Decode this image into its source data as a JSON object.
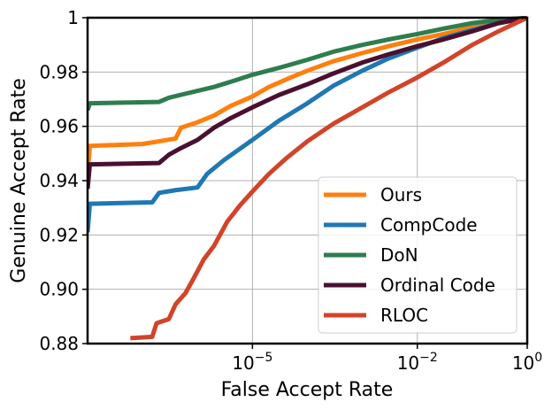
{
  "chart_data": {
    "type": "line",
    "title": "",
    "xlabel": "False Accept Rate",
    "ylabel": "Genuine Accept Rate",
    "xscale": "log",
    "xlim": [
      1e-08,
      1
    ],
    "ylim": [
      0.88,
      1.0
    ],
    "grid": true,
    "legend_position": "lower-right",
    "x_ticks": [
      {
        "value": 1e-05,
        "base": "10",
        "exp": "−5"
      },
      {
        "value": 0.01,
        "base": "10",
        "exp": "−2"
      },
      {
        "value": 1,
        "base": "10",
        "exp": "0"
      }
    ],
    "y_ticks": [
      {
        "value": 0.88,
        "label": "0.88"
      },
      {
        "value": 0.9,
        "label": "0.90"
      },
      {
        "value": 0.92,
        "label": "0.92"
      },
      {
        "value": 0.94,
        "label": "0.94"
      },
      {
        "value": 0.96,
        "label": "0.96"
      },
      {
        "value": 0.98,
        "label": "0.98"
      },
      {
        "value": 1.0,
        "label": "1"
      }
    ],
    "series": [
      {
        "name": "Ours",
        "color": "#ff7f0e",
        "points": [
          [
            1e-08,
            0.942
          ],
          [
            1.1e-08,
            0.9528
          ],
          [
            1e-07,
            0.9535
          ],
          [
            2e-07,
            0.9545
          ],
          [
            4e-07,
            0.9555
          ],
          [
            5e-07,
            0.9595
          ],
          [
            1e-06,
            0.9615
          ],
          [
            2e-06,
            0.964
          ],
          [
            4e-06,
            0.9675
          ],
          [
            1e-05,
            0.971
          ],
          [
            2e-05,
            0.9745
          ],
          [
            5e-05,
            0.978
          ],
          [
            0.0001,
            0.9805
          ],
          [
            0.0003,
            0.984
          ],
          [
            0.001,
            0.987
          ],
          [
            0.003,
            0.9895
          ],
          [
            0.01,
            0.992
          ],
          [
            0.03,
            0.994
          ],
          [
            0.1,
            0.9965
          ],
          [
            0.3,
            0.998
          ],
          [
            1,
            1.0
          ]
        ]
      },
      {
        "name": "CompCode",
        "color": "#1f77b4",
        "points": [
          [
            1e-08,
            0.921
          ],
          [
            1.1e-08,
            0.9315
          ],
          [
            1.5e-07,
            0.932
          ],
          [
            2e-07,
            0.9355
          ],
          [
            4e-07,
            0.9365
          ],
          [
            1e-06,
            0.9375
          ],
          [
            1.5e-06,
            0.9425
          ],
          [
            3e-06,
            0.9475
          ],
          [
            1e-05,
            0.955
          ],
          [
            3e-05,
            0.962
          ],
          [
            0.0001,
            0.9685
          ],
          [
            0.0003,
            0.975
          ],
          [
            0.001,
            0.9805
          ],
          [
            0.003,
            0.985
          ],
          [
            0.01,
            0.989
          ],
          [
            0.03,
            0.9925
          ],
          [
            0.1,
            0.9955
          ],
          [
            0.3,
            0.998
          ],
          [
            1,
            1.0
          ]
        ]
      },
      {
        "name": "DoN",
        "color": "#2e7d4f",
        "points": [
          [
            1e-08,
            0.966
          ],
          [
            1.1e-08,
            0.9685
          ],
          [
            2e-07,
            0.969
          ],
          [
            3e-07,
            0.9705
          ],
          [
            6e-07,
            0.972
          ],
          [
            2e-06,
            0.9745
          ],
          [
            5e-06,
            0.977
          ],
          [
            1e-05,
            0.979
          ],
          [
            3e-05,
            0.9815
          ],
          [
            0.0001,
            0.9845
          ],
          [
            0.0003,
            0.9875
          ],
          [
            0.001,
            0.99
          ],
          [
            0.003,
            0.992
          ],
          [
            0.01,
            0.994
          ],
          [
            0.03,
            0.996
          ],
          [
            0.1,
            0.998
          ],
          [
            0.3,
            0.9992
          ],
          [
            1,
            1.0
          ]
        ]
      },
      {
        "name": "Ordinal Code",
        "color": "#4a1030",
        "points": [
          [
            1e-08,
            0.937
          ],
          [
            1.1e-08,
            0.946
          ],
          [
            2e-07,
            0.9465
          ],
          [
            3e-07,
            0.9495
          ],
          [
            5e-07,
            0.952
          ],
          [
            1e-06,
            0.955
          ],
          [
            2e-06,
            0.9595
          ],
          [
            4e-06,
            0.963
          ],
          [
            1e-05,
            0.967
          ],
          [
            3e-05,
            0.9715
          ],
          [
            0.0001,
            0.9755
          ],
          [
            0.0003,
            0.9795
          ],
          [
            0.001,
            0.9835
          ],
          [
            0.003,
            0.9865
          ],
          [
            0.01,
            0.9895
          ],
          [
            0.03,
            0.992
          ],
          [
            0.1,
            0.995
          ],
          [
            0.3,
            0.998
          ],
          [
            1,
            1.0
          ]
        ]
      },
      {
        "name": "RLOC",
        "color": "#d1442a",
        "points": [
          [
            6e-08,
            0.882
          ],
          [
            1.5e-07,
            0.8825
          ],
          [
            1.8e-07,
            0.8875
          ],
          [
            3e-07,
            0.889
          ],
          [
            4e-07,
            0.8945
          ],
          [
            6e-07,
            0.8985
          ],
          [
            8e-07,
            0.903
          ],
          [
            1.3e-06,
            0.911
          ],
          [
            2e-06,
            0.916
          ],
          [
            3.5e-06,
            0.925
          ],
          [
            6e-06,
            0.931
          ],
          [
            1e-05,
            0.936
          ],
          [
            2e-05,
            0.9425
          ],
          [
            4e-05,
            0.948
          ],
          [
            0.0001,
            0.9545
          ],
          [
            0.0003,
            0.961
          ],
          [
            0.001,
            0.967
          ],
          [
            0.003,
            0.9725
          ],
          [
            0.01,
            0.978
          ],
          [
            0.03,
            0.9835
          ],
          [
            0.1,
            0.99
          ],
          [
            0.3,
            0.995
          ],
          [
            1,
            1.0
          ]
        ]
      }
    ]
  }
}
